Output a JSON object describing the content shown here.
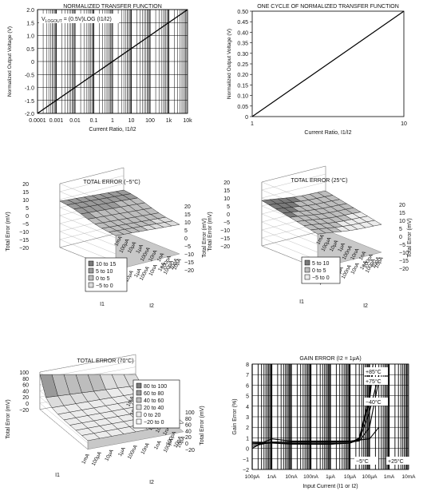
{
  "chart_data": [
    {
      "type": "line",
      "title": "NORMALIZED TRANSFER FUNCTION",
      "annotation_prefix": "V",
      "annotation_sub": "LOGOUT",
      "annotation_suffix": " = (0.5V)LOG (I1/I2)",
      "xlabel": "Current Ratio, I1/I2",
      "ylabel": "Normalized Output Voltage (V)",
      "x_scale": "log",
      "xlim": [
        0.0001,
        10000
      ],
      "ylim": [
        -2.0,
        2.0
      ],
      "x_ticks": [
        "0.0001",
        "0.001",
        "0.01",
        "0.1",
        "1",
        "10",
        "100",
        "1k",
        "10k"
      ],
      "y_ticks": [
        "2.0",
        "1.5",
        "1.0",
        "0.5",
        "0",
        "-0.5",
        "-1.0",
        "-1.5",
        "-2.0"
      ],
      "grid": true,
      "series": [
        {
          "x": [
            0.0001,
            10000
          ],
          "y": [
            -2.0,
            2.0
          ]
        }
      ]
    },
    {
      "type": "line",
      "title": "ONE CYCLE OF NORMALIZED TRANSFER FUNCTION",
      "xlabel": "Current Ratio, I1/I2",
      "ylabel": "Normalized Output Voltage (V)",
      "x_scale": "log",
      "xlim": [
        1,
        10
      ],
      "ylim": [
        0,
        0.5
      ],
      "x_ticks": [
        "1",
        "10"
      ],
      "y_ticks": [
        "0.50",
        "0.45",
        "0.40",
        "0.35",
        "0.30",
        "0.25",
        "0.20",
        "0.15",
        "0.10",
        "0.05",
        "0"
      ],
      "grid": false,
      "series": [
        {
          "x": [
            1,
            10
          ],
          "y": [
            0,
            0.5
          ]
        }
      ]
    },
    {
      "type": "surface",
      "title": "TOTAL ERROR (−5°C)",
      "zlabel": "Total Error (mV)",
      "z_ticks": [
        "20",
        "15",
        "10",
        "5",
        "0",
        "−5",
        "−10",
        "−15",
        "−20"
      ],
      "x_axis_label": "I1",
      "y_axis_label": "I2",
      "current_ticks": [
        "1mA",
        "100μA",
        "10μA",
        "1μA",
        "100nA",
        "10nA",
        "1nA",
        "100pA",
        "10pA"
      ],
      "legend": [
        "10 to 15",
        "5 to 10",
        "0 to 5",
        "−5 to 0"
      ],
      "legend_position": "bottom-center"
    },
    {
      "type": "surface",
      "title": "TOTAL ERROR (25°C)",
      "zlabel": "Total Error (mV)",
      "z_ticks": [
        "20",
        "15",
        "10",
        "5",
        "0",
        "−5",
        "−10",
        "−15",
        "−20"
      ],
      "x_axis_label": "I1",
      "y_axis_label": "I2",
      "current_ticks": [
        "1mA",
        "100μA",
        "10μA",
        "1μA",
        "100nA",
        "10nA",
        "1nA",
        "100pA",
        "10pA"
      ],
      "legend": [
        "5 to 10",
        "0 to 5",
        "−5 to 0"
      ],
      "legend_position": "bottom-center"
    },
    {
      "type": "surface",
      "title": "TOTAL ERROR (70°C)",
      "zlabel": "Total Error (mV)",
      "z_ticks": [
        "100",
        "80",
        "60",
        "40",
        "20",
        "0",
        "−20"
      ],
      "x_axis_label": "I1",
      "y_axis_label": "I2",
      "current_ticks": [
        "1mA",
        "100μA",
        "10μA",
        "1μA",
        "100nA",
        "10nA",
        "1nA",
        "100pA",
        "10pA"
      ],
      "legend": [
        "80 to 100",
        "60 to 80",
        "40 to 60",
        "20 to 40",
        "0 to 20",
        "−20 to 0"
      ],
      "legend_position": "top-right"
    },
    {
      "type": "line",
      "title": "GAIN ERROR (I2 = 1μA)",
      "xlabel": "Input Current (I1 or I2)",
      "ylabel": "Gain Error (%)",
      "x_scale": "log",
      "x_ticks": [
        "100pA",
        "1nA",
        "10nA",
        "100nA",
        "1μA",
        "10μA",
        "100μA",
        "1mA",
        "10mA"
      ],
      "ylim": [
        -2,
        8
      ],
      "y_ticks": [
        "8",
        "7",
        "6",
        "5",
        "4",
        "3",
        "2",
        "1",
        "0",
        "−1",
        "−2"
      ],
      "grid": true,
      "series": [
        {
          "name": "+85°C",
          "x": [
            0.0001,
            0.001,
            0.01,
            0.1,
            1,
            10,
            30,
            100,
            150
          ],
          "y": [
            0.5,
            0.5,
            0.4,
            0.4,
            0.4,
            0.5,
            1.0,
            5.0,
            8.0
          ]
        },
        {
          "name": "+75°C",
          "x": [
            0.0001,
            0.001,
            0.01,
            0.1,
            1,
            10,
            30,
            100,
            150
          ],
          "y": [
            0.6,
            0.55,
            0.45,
            0.4,
            0.4,
            0.5,
            0.9,
            4.5,
            7.5
          ]
        },
        {
          "name": "−40°C",
          "x": [
            0.0001,
            0.0003,
            0.001,
            0.01,
            0.1,
            1,
            10,
            100,
            300
          ],
          "y": [
            0.0,
            0.5,
            0.9,
            0.7,
            0.7,
            0.7,
            0.7,
            0.9,
            2.0
          ]
        },
        {
          "name": "−5°C",
          "x": [
            0.0001,
            0.001,
            0.01,
            0.1,
            1,
            10,
            30,
            100,
            300
          ],
          "y": [
            0.2,
            0.6,
            0.6,
            0.6,
            0.6,
            0.6,
            0.7,
            2.0,
            6.5
          ]
        },
        {
          "name": "+25°C",
          "x": [
            0.0001,
            0.001,
            0.01,
            0.1,
            1,
            10,
            30,
            100,
            300
          ],
          "y": [
            0.4,
            0.5,
            0.5,
            0.5,
            0.5,
            0.5,
            0.8,
            3.5,
            7.0
          ]
        }
      ]
    }
  ]
}
